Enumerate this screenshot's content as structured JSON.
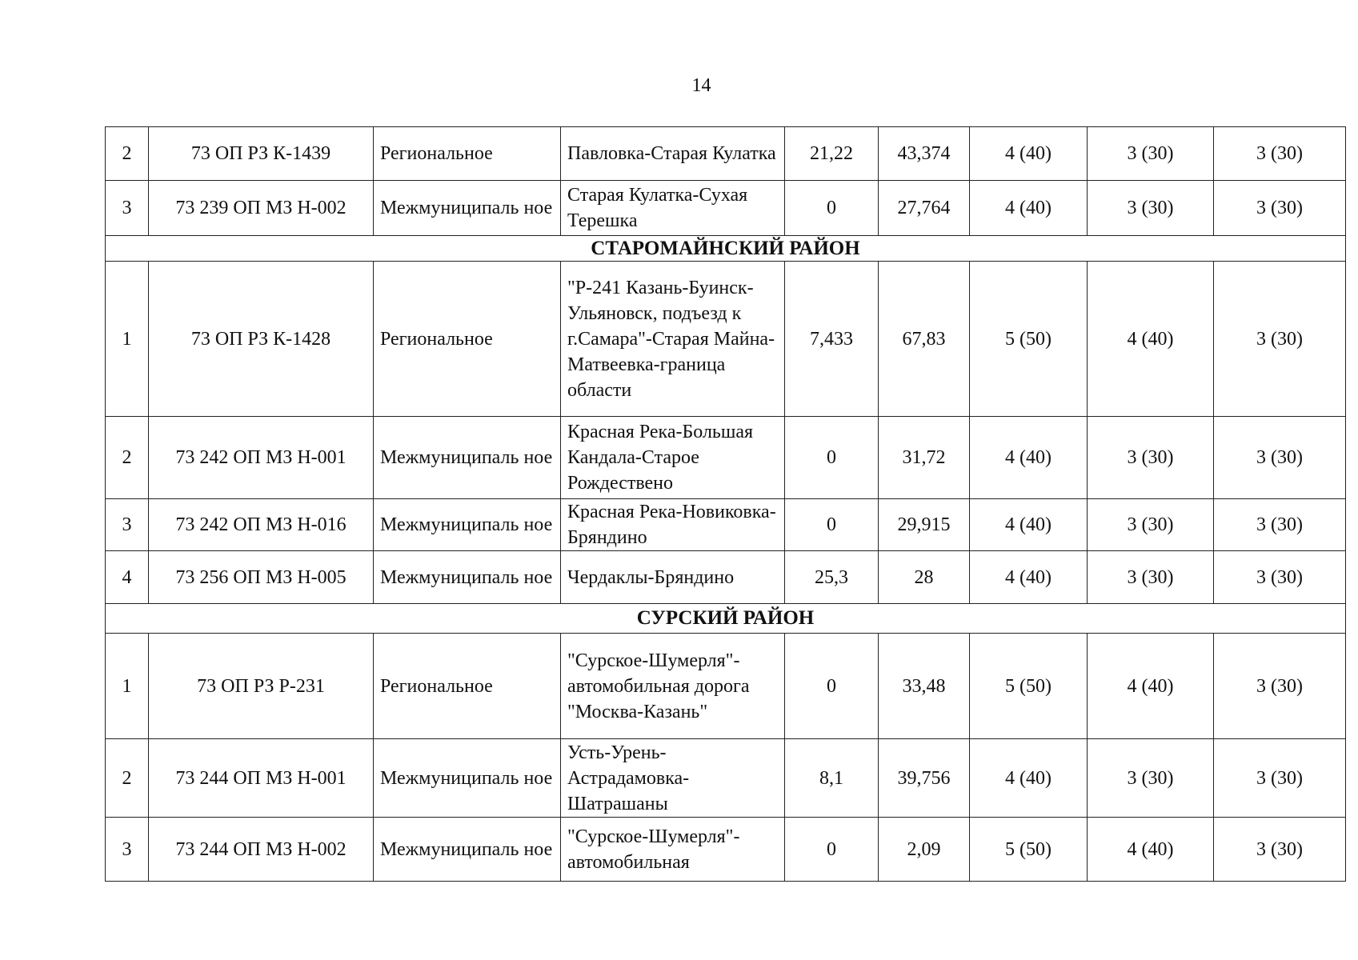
{
  "page_number": "14",
  "rows": [
    {
      "type": "row",
      "no": "2",
      "code": "73 ОП РЗ К-1439",
      "kind": "Региональное",
      "name": "Павловка-Старая Кулатка",
      "v1": "21,22",
      "v2": "43,374",
      "v3": "4 (40)",
      "v4": "3 (30)",
      "v5": "3 (30)"
    },
    {
      "type": "row",
      "no": "3",
      "code": "73 239 ОП МЗ Н-002",
      "kind": "Межмуниципаль ное",
      "name": "Старая Кулатка-Сухая Терешка",
      "v1": "0",
      "v2": "27,764",
      "v3": "4 (40)",
      "v4": "3 (30)",
      "v5": "3 (30)"
    },
    {
      "type": "section",
      "title": "СТАРОМАЙНСКИЙ РАЙОН"
    },
    {
      "type": "row",
      "no": "1",
      "code": "73 ОП РЗ К-1428",
      "kind": "Региональное",
      "name": "\"Р-241 Казань-Буинск-Ульяновск, подъезд к г.Самара\"-Старая Майна-Матвеевка-граница области",
      "v1": "7,433",
      "v2": "67,83",
      "v3": "5 (50)",
      "v4": "4 (40)",
      "v5": "3 (30)"
    },
    {
      "type": "row",
      "no": "2",
      "code": "73 242 ОП МЗ Н-001",
      "kind": "Межмуниципаль ное",
      "name": "Красная Река-Большая Кандала-Старое Рождествено",
      "v1": "0",
      "v2": "31,72",
      "v3": "4 (40)",
      "v4": "3 (30)",
      "v5": "3 (30)"
    },
    {
      "type": "row",
      "no": "3",
      "code": "73 242 ОП МЗ Н-016",
      "kind": "Межмуниципаль ное",
      "name": "Красная Река-Новиковка-Бряндино",
      "v1": "0",
      "v2": "29,915",
      "v3": "4 (40)",
      "v4": "3 (30)",
      "v5": "3 (30)"
    },
    {
      "type": "row",
      "no": "4",
      "code": "73 256 ОП МЗ Н-005",
      "kind": "Межмуниципаль ное",
      "name": "Чердаклы-Бряндино",
      "v1": "25,3",
      "v2": "28",
      "v3": "4 (40)",
      "v4": "3 (30)",
      "v5": "3 (30)"
    },
    {
      "type": "section",
      "title": "СУРСКИЙ РАЙОН"
    },
    {
      "type": "row",
      "no": "1",
      "code": "73 ОП РЗ Р-231",
      "kind": "Региональное",
      "name": "\"Сурское-Шумерля\"-автомобильная дорога \"Москва-Казань\"",
      "v1": "0",
      "v2": "33,48",
      "v3": "5 (50)",
      "v4": "4 (40)",
      "v5": "3 (30)"
    },
    {
      "type": "row",
      "no": "2",
      "code": "73 244 ОП МЗ Н-001",
      "kind": "Межмуниципаль ное",
      "name": "Усть-Урень-Астрадамовка-Шатрашаны",
      "v1": "8,1",
      "v2": "39,756",
      "v3": "4 (40)",
      "v4": "3 (30)",
      "v5": "3 (30)"
    },
    {
      "type": "row",
      "no": "3",
      "code": "73 244 ОП МЗ Н-002",
      "kind": "Межмуниципаль ное",
      "name": "\"Сурское-Шумерля\"-автомобильная",
      "v1": "0",
      "v2": "2,09",
      "v3": "5 (50)",
      "v4": "4 (40)",
      "v5": "3 (30)"
    }
  ]
}
